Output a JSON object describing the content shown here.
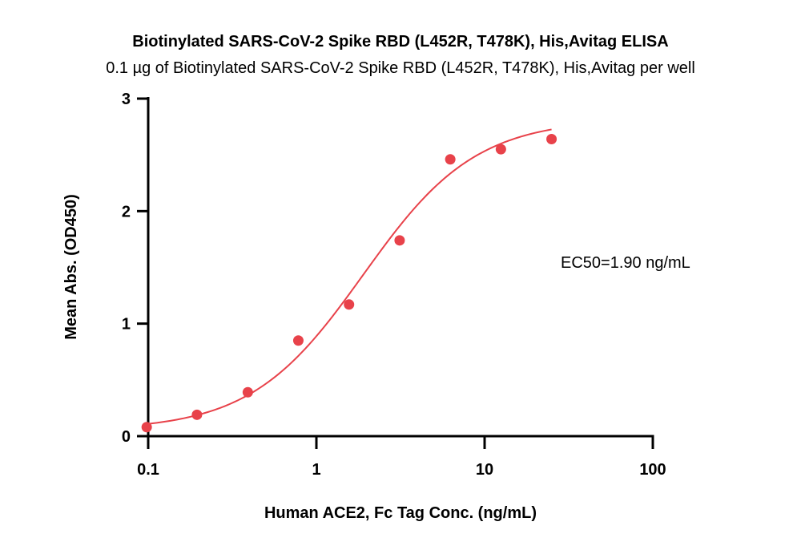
{
  "chart_data": {
    "type": "scatter",
    "title": "Biotinylated SARS-CoV-2 Spike RBD (L452R, T478K), His,Avitag ELISA",
    "subtitle": "0.1 µg of Biotinylated SARS-CoV-2 Spike RBD (L452R, T478K), His,Avitag per well",
    "xlabel": "Human ACE2, Fc Tag Conc. (ng/mL)",
    "ylabel": "Mean Abs. (OD450)",
    "x_scale": "log",
    "xlim": [
      0.1,
      100
    ],
    "ylim": [
      0,
      3
    ],
    "x_ticks": [
      0.1,
      1,
      10,
      100
    ],
    "x_tick_labels": [
      "0.1",
      "1",
      "10",
      "100"
    ],
    "y_ticks": [
      0,
      1,
      2,
      3
    ],
    "y_tick_labels": [
      "0",
      "1",
      "2",
      "3"
    ],
    "grid": false,
    "color": "#e8424a",
    "series": [
      {
        "x": [
          0.098,
          0.195,
          0.391,
          0.781,
          1.563,
          3.125,
          6.25,
          12.5,
          25
        ],
        "y": [
          0.08,
          0.19,
          0.39,
          0.85,
          1.17,
          1.74,
          2.46,
          2.55,
          2.64
        ]
      }
    ],
    "fit": {
      "model": "4PL",
      "bottom": 0.05,
      "top": 2.82,
      "ec50": 1.9,
      "hill": 1.3,
      "x_range": [
        0.098,
        25
      ]
    },
    "annotations": [
      "EC50=1.90 ng/mL"
    ]
  }
}
